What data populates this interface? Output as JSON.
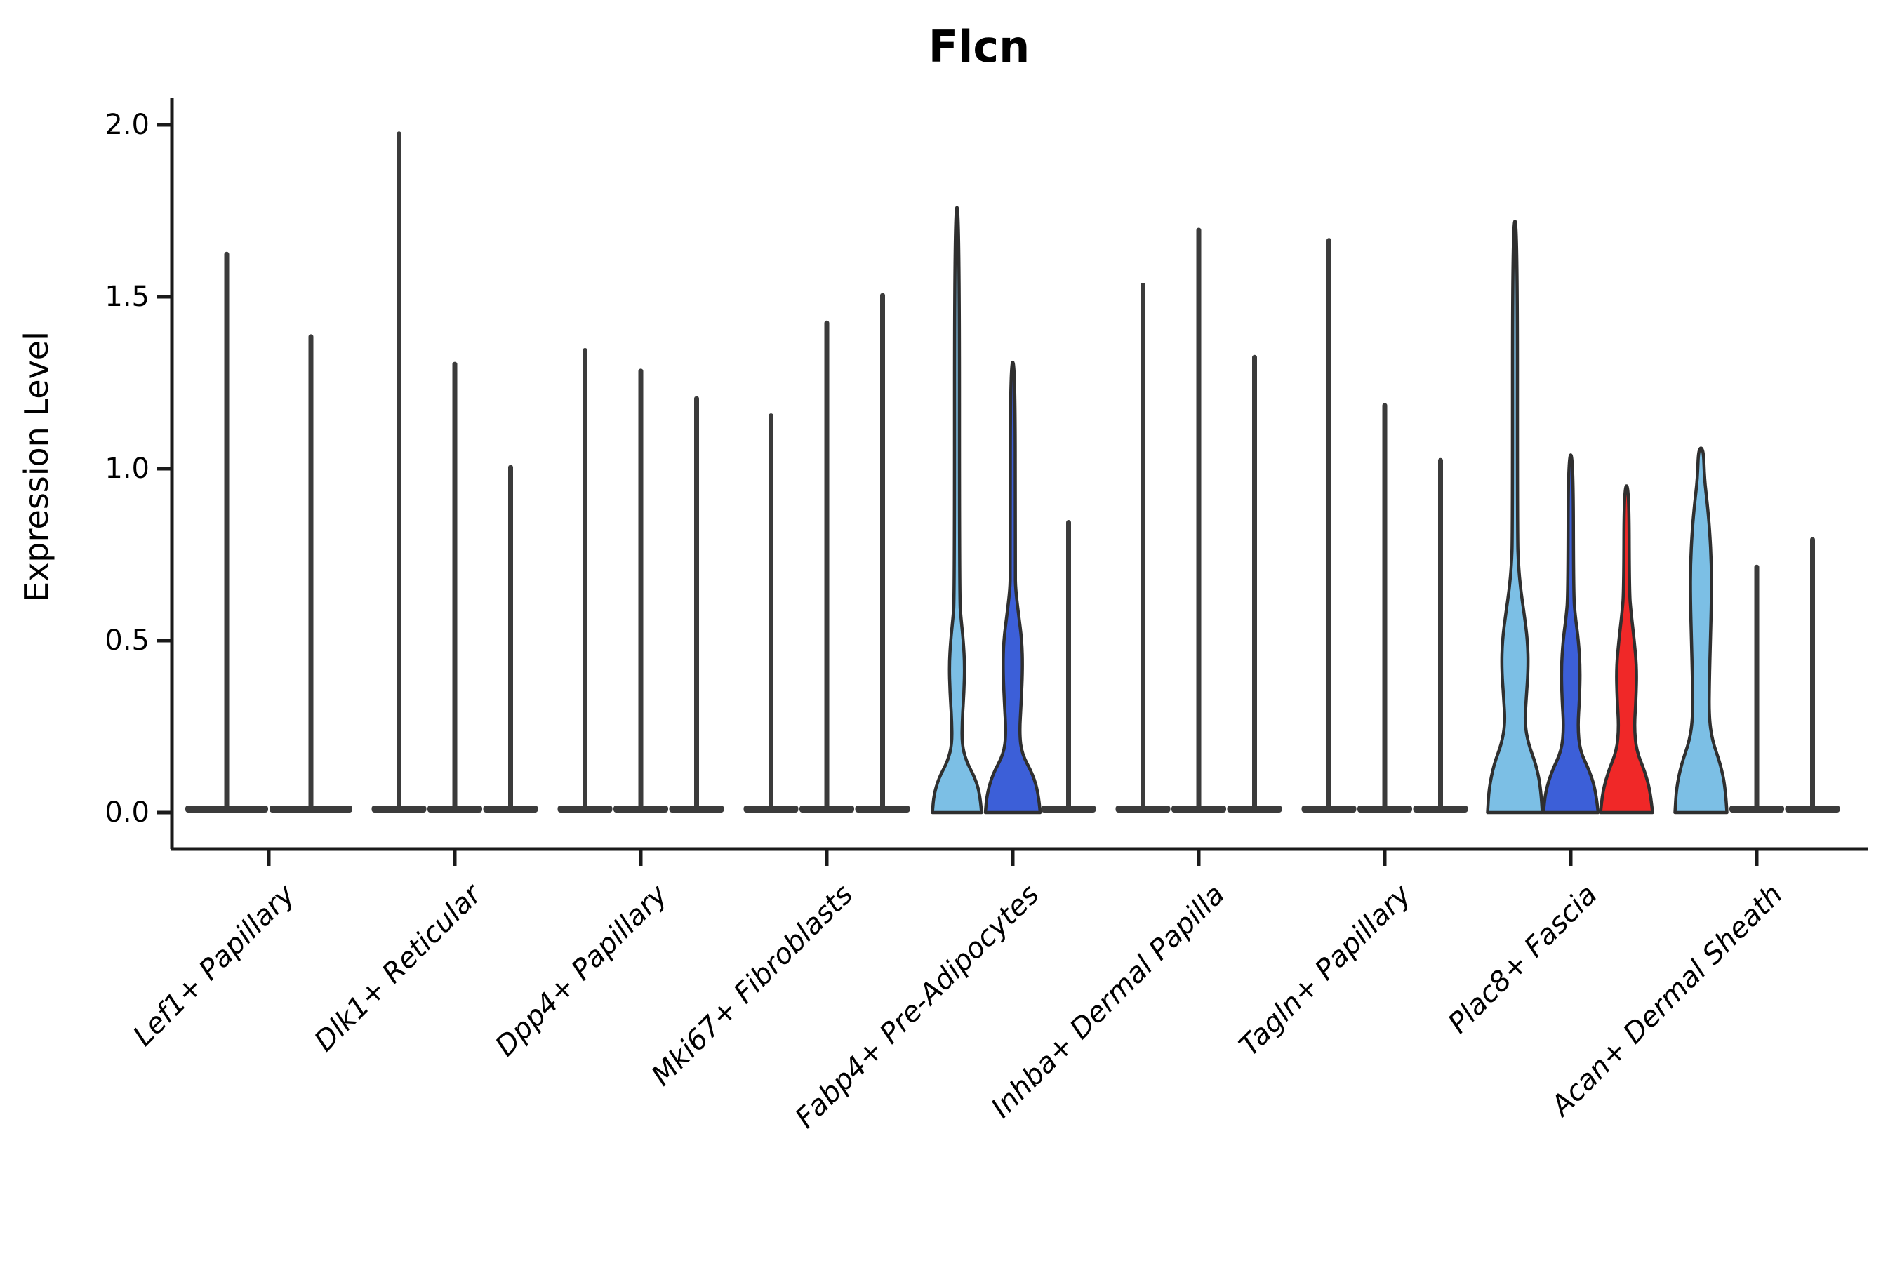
{
  "title": "Flcn",
  "axes": {
    "ylabel": "Expression Level",
    "ytick_labels": [
      "0.0",
      "0.5",
      "1.0",
      "1.5",
      "2.0"
    ]
  },
  "colors": {
    "light_blue": "#7CBFE5",
    "royal_blue": "#3C5FD8",
    "red": "#F02828",
    "outline": "#2F2F2F",
    "spike": "#3B3B3B",
    "axis": "#1A1A1A"
  },
  "chart_data": {
    "type": "violin",
    "title": "Flcn",
    "xlabel": "",
    "ylabel": "Expression Level",
    "ylim": [
      0,
      2.05
    ],
    "yticks": [
      0.0,
      0.5,
      1.0,
      1.5,
      2.0
    ],
    "grid": false,
    "legend": "none",
    "note": "Each cell-type group contains violins for up to 3 samples; most violins collapse to a spike (max expression) over a flat base at 0. 'max' = top of violin spike in Expression Level units. 'profile' = [expression_value, half_width_px] density outline for filled violins.",
    "groups": [
      {
        "label": "Lef1+ Papillary",
        "violins": [
          {
            "max": 1.63,
            "fill": "none"
          },
          {
            "max": 1.39,
            "fill": "none"
          }
        ]
      },
      {
        "label": "Dlk1+ Reticular",
        "violins": [
          {
            "max": 1.98,
            "fill": "none"
          },
          {
            "max": 1.31,
            "fill": "none"
          },
          {
            "max": 1.01,
            "fill": "none"
          }
        ]
      },
      {
        "label": "Dpp4+ Papillary",
        "violins": [
          {
            "max": 1.35,
            "fill": "none"
          },
          {
            "max": 1.29,
            "fill": "none"
          },
          {
            "max": 1.21,
            "fill": "none"
          }
        ]
      },
      {
        "label": "Mki67+ Fibroblasts",
        "violins": [
          {
            "max": 1.16,
            "fill": "none"
          },
          {
            "max": 1.43,
            "fill": "none"
          },
          {
            "max": 1.51,
            "fill": "none"
          }
        ]
      },
      {
        "label": "Fabp4+ Pre-Adipocytes",
        "violins": [
          {
            "max": 1.76,
            "fill": "light_blue",
            "profile": [
              [
                0,
                35
              ],
              [
                0.05,
                33
              ],
              [
                0.1,
                26
              ],
              [
                0.15,
                13
              ],
              [
                0.2,
                7
              ],
              [
                0.27,
                7.5
              ],
              [
                0.35,
                10
              ],
              [
                0.43,
                11
              ],
              [
                0.5,
                9
              ],
              [
                0.56,
                6
              ],
              [
                0.62,
                3.5
              ],
              [
                1.76,
                3.5
              ]
            ]
          },
          {
            "max": 1.31,
            "fill": "royal_blue",
            "profile": [
              [
                0,
                39
              ],
              [
                0.05,
                37
              ],
              [
                0.11,
                29
              ],
              [
                0.17,
                13
              ],
              [
                0.23,
                9.5
              ],
              [
                0.32,
                12
              ],
              [
                0.42,
                14
              ],
              [
                0.5,
                13
              ],
              [
                0.58,
                8
              ],
              [
                0.65,
                4
              ],
              [
                0.7,
                3.5
              ],
              [
                1.31,
                3.5
              ]
            ]
          },
          {
            "max": 0.85,
            "fill": "none"
          }
        ]
      },
      {
        "label": "Inhba+ Dermal Papilla",
        "violins": [
          {
            "max": 1.54,
            "fill": "none"
          },
          {
            "max": 1.7,
            "fill": "none"
          },
          {
            "max": 1.33,
            "fill": "none"
          }
        ]
      },
      {
        "label": "Tagln+ Papillary",
        "violins": [
          {
            "max": 1.67,
            "fill": "none"
          },
          {
            "max": 1.19,
            "fill": "none"
          },
          {
            "max": 1.03,
            "fill": "none"
          }
        ]
      },
      {
        "label": "Plac8+ Fascia",
        "violins": [
          {
            "max": 1.72,
            "fill": "light_blue",
            "profile": [
              [
                0,
                39
              ],
              [
                0.07,
                37
              ],
              [
                0.14,
                30
              ],
              [
                0.2,
                19
              ],
              [
                0.26,
                14
              ],
              [
                0.33,
                16
              ],
              [
                0.42,
                19
              ],
              [
                0.5,
                18
              ],
              [
                0.58,
                13
              ],
              [
                0.65,
                8
              ],
              [
                0.72,
                5
              ],
              [
                0.8,
                3.5
              ],
              [
                1.72,
                3.5
              ]
            ]
          },
          {
            "max": 1.04,
            "fill": "royal_blue",
            "profile": [
              [
                0,
                39
              ],
              [
                0.06,
                36
              ],
              [
                0.12,
                27
              ],
              [
                0.18,
                13
              ],
              [
                0.25,
                10
              ],
              [
                0.33,
                12.5
              ],
              [
                0.42,
                13.5
              ],
              [
                0.5,
                11
              ],
              [
                0.57,
                6.5
              ],
              [
                0.63,
                4
              ],
              [
                1.04,
                3.5
              ]
            ]
          },
          {
            "max": 0.95,
            "fill": "red",
            "profile": [
              [
                0,
                37
              ],
              [
                0.06,
                34
              ],
              [
                0.12,
                26
              ],
              [
                0.18,
                14
              ],
              [
                0.25,
                11
              ],
              [
                0.33,
                13.5
              ],
              [
                0.42,
                14.5
              ],
              [
                0.5,
                11
              ],
              [
                0.58,
                6.5
              ],
              [
                0.64,
                4
              ],
              [
                0.95,
                3.5
              ]
            ]
          }
        ]
      },
      {
        "label": "Acan+ Dermal Sheath",
        "violins": [
          {
            "max": 1.06,
            "fill": "light_blue",
            "profile": [
              [
                0,
                37
              ],
              [
                0.07,
                35
              ],
              [
                0.14,
                28
              ],
              [
                0.21,
                16
              ],
              [
                0.28,
                11.5
              ],
              [
                0.38,
                12
              ],
              [
                0.5,
                13.5
              ],
              [
                0.62,
                15
              ],
              [
                0.72,
                15
              ],
              [
                0.82,
                12.5
              ],
              [
                0.9,
                9
              ],
              [
                0.97,
                5
              ],
              [
                1.06,
                3.5
              ]
            ]
          },
          {
            "max": 0.72,
            "fill": "none"
          },
          {
            "max": 0.8,
            "fill": "none"
          }
        ]
      }
    ]
  }
}
